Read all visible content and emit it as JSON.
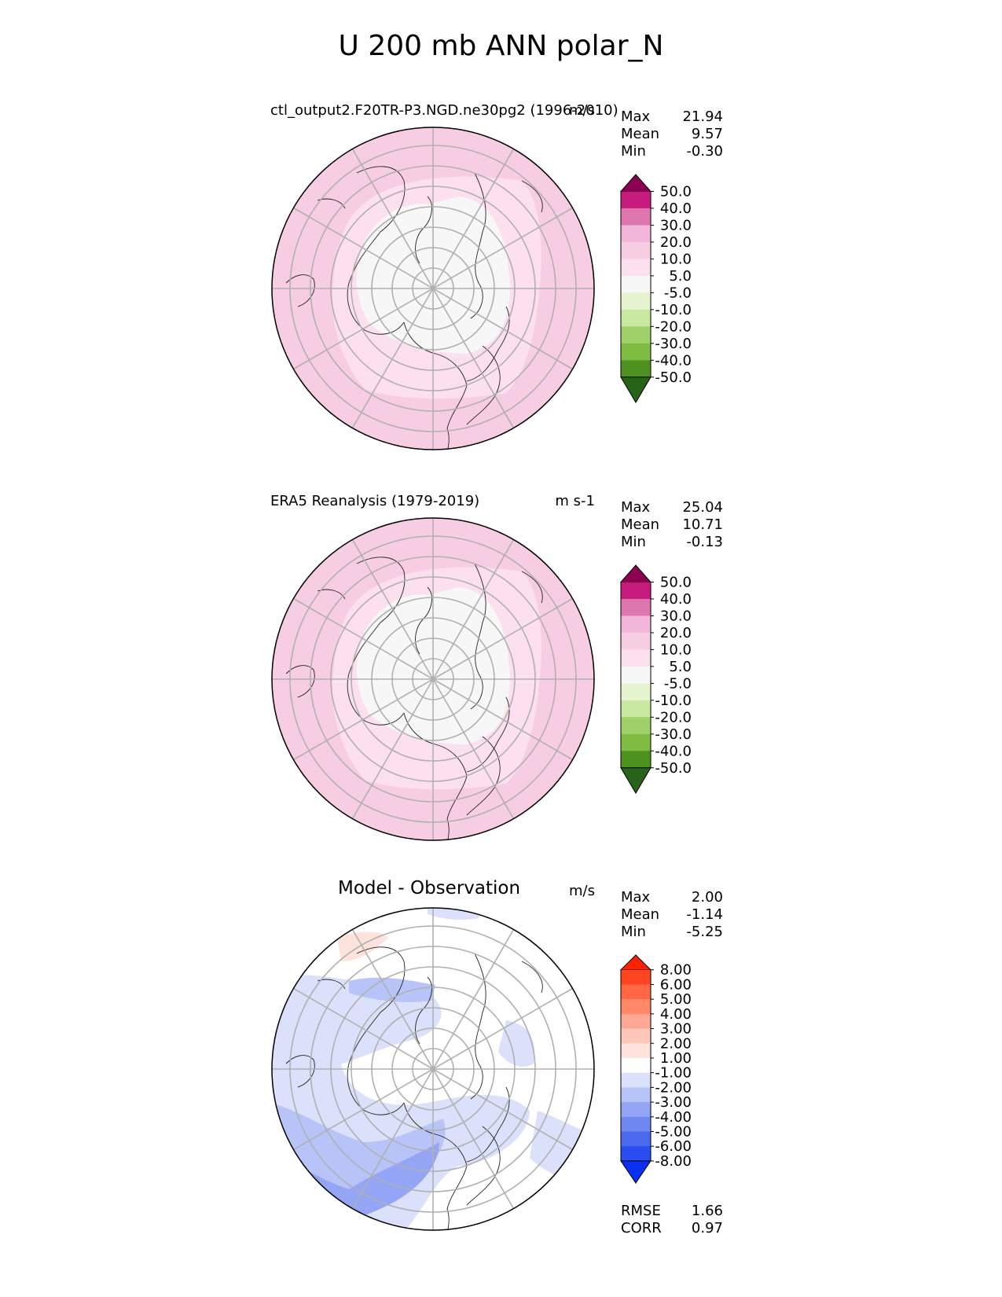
{
  "title": "U 200 mb ANN polar_N",
  "chart_data": [
    {
      "type": "heatmap",
      "title": "ctl_output2.F20TR-P3.NGD.ne30pg2 (1996-2010)",
      "units": "m/s",
      "stats": [
        {
          "label": "Max",
          "value": "21.94"
        },
        {
          "label": "Mean",
          "value": "9.57"
        },
        {
          "label": "Min",
          "value": "-0.30"
        }
      ],
      "colorbar": {
        "labels": [
          "50.0",
          "40.0",
          "30.0",
          "20.0",
          "10.0",
          "5.0",
          "-5.0",
          "-10.0",
          "-20.0",
          "-30.0",
          "-40.0",
          "-50.0"
        ],
        "colors": [
          "#8e0152",
          "#c51b7d",
          "#de77ae",
          "#f1b6da",
          "#f7cde4",
          "#fde0ef",
          "#f7f7f7",
          "#e6f5d0",
          "#c9e8a0",
          "#a0d168",
          "#7fbc41",
          "#4d9221",
          "#276419"
        ]
      },
      "projection": "north polar stereographic"
    },
    {
      "type": "heatmap",
      "title": "ERA5 Reanalysis (1979-2019)",
      "units": "m s-1",
      "stats": [
        {
          "label": "Max",
          "value": "25.04"
        },
        {
          "label": "Mean",
          "value": "10.71"
        },
        {
          "label": "Min",
          "value": "-0.13"
        }
      ],
      "colorbar": {
        "labels": [
          "50.0",
          "40.0",
          "30.0",
          "20.0",
          "10.0",
          "5.0",
          "-5.0",
          "-10.0",
          "-20.0",
          "-30.0",
          "-40.0",
          "-50.0"
        ],
        "colors": [
          "#8e0152",
          "#c51b7d",
          "#de77ae",
          "#f1b6da",
          "#f7cde4",
          "#fde0ef",
          "#f7f7f7",
          "#e6f5d0",
          "#c9e8a0",
          "#a0d168",
          "#7fbc41",
          "#4d9221",
          "#276419"
        ]
      },
      "projection": "north polar stereographic"
    },
    {
      "type": "heatmap",
      "title": "Model - Observation",
      "units": "m/s",
      "stats": [
        {
          "label": "Max",
          "value": "2.00"
        },
        {
          "label": "Mean",
          "value": "-1.14"
        },
        {
          "label": "Min",
          "value": "-5.25"
        }
      ],
      "colorbar": {
        "labels": [
          "8.00",
          "6.00",
          "5.00",
          "4.00",
          "3.00",
          "2.00",
          "1.00",
          "-1.00",
          "-2.00",
          "-3.00",
          "-4.00",
          "-5.00",
          "-6.00",
          "-8.00"
        ],
        "colors": [
          "#ff2200",
          "#ff4422",
          "#ff6644",
          "#ff8866",
          "#ffa895",
          "#ffc7ba",
          "#fde3dc",
          "#ffffff",
          "#dbe1fa",
          "#b8c4f7",
          "#93a5f4",
          "#6f87f1",
          "#4b69ee",
          "#2a4ef0",
          "#0a2ff5"
        ]
      },
      "projection": "north polar stereographic",
      "footer": [
        {
          "label": "RMSE",
          "value": "1.66"
        },
        {
          "label": "CORR",
          "value": "0.97"
        }
      ]
    }
  ]
}
